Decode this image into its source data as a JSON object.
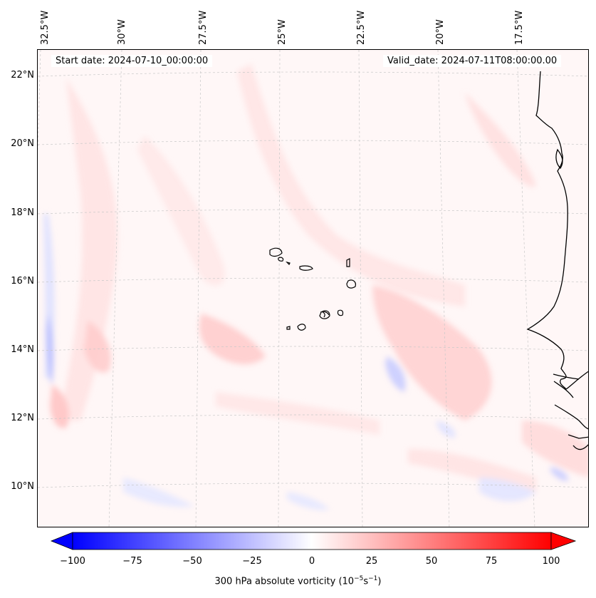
{
  "map": {
    "info": {
      "start_date": "Start date: 2024-07-10_00:00:00",
      "valid_date": "Valid_date: 2024-07-11T08:00:00.00"
    },
    "longitude_labels": [
      "32.5°W",
      "30°W",
      "27.5°W",
      "25°W",
      "22.5°W",
      "20°W",
      "17.5°W"
    ],
    "latitude_labels": [
      "22°N",
      "20°N",
      "18°N",
      "16°N",
      "14°N",
      "12°N",
      "10°N"
    ],
    "gridlines": true,
    "colorbar": {
      "label_prefix": "300 hPa absolute vorticity (10",
      "label_exp1": "−5",
      "label_mid": "s",
      "label_exp2": "−1",
      "label_suffix": ")",
      "ticks": [
        "−100",
        "−75",
        "−50",
        "−25",
        "0",
        "25",
        "50",
        "75",
        "100"
      ],
      "range": [
        -100,
        100
      ],
      "colormap": "bwr",
      "low_color": "#0000ff",
      "mid_color": "#ffffff",
      "high_color": "#ff0000"
    }
  }
}
